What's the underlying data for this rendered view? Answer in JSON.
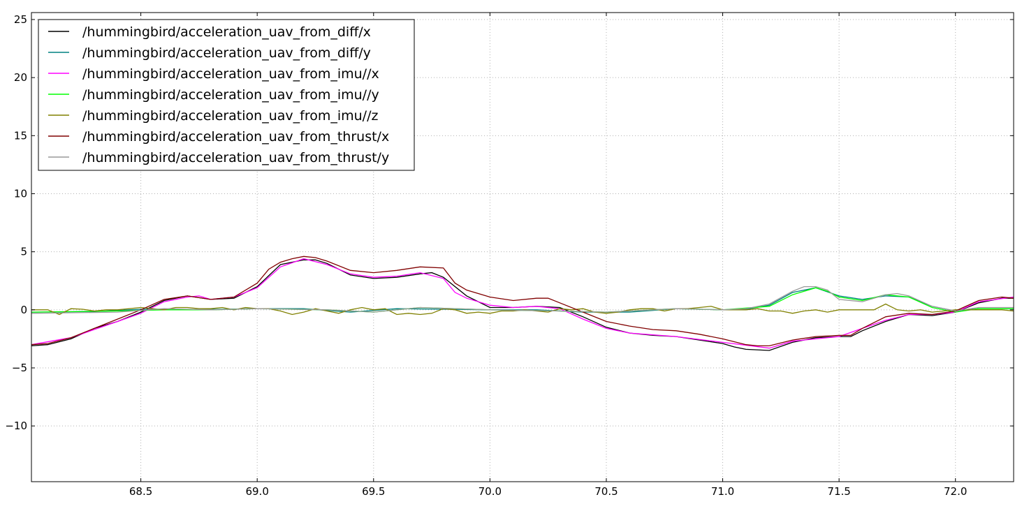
{
  "chart_data": {
    "type": "line",
    "title": "",
    "xlabel": "",
    "ylabel": "",
    "xlim": [
      68.03,
      72.25
    ],
    "ylim": [
      -14.8,
      25.6
    ],
    "xticks": [
      68.5,
      69.0,
      69.5,
      70.0,
      70.5,
      71.0,
      71.5,
      72.0
    ],
    "xtick_labels": [
      "68.5",
      "69.0",
      "69.5",
      "70.0",
      "70.5",
      "71.0",
      "71.5",
      "72.0"
    ],
    "yticks": [
      -10,
      -5,
      0,
      5,
      10,
      15,
      20,
      25
    ],
    "ytick_labels": [
      "−10",
      "−5",
      "0",
      "5",
      "10",
      "15",
      "20",
      "25"
    ],
    "grid": true,
    "legend_position": "top-left",
    "series": [
      {
        "name": "/hummingbird/acceleration_uav_from_diff/x",
        "color": "#000000",
        "x": [
          68.03,
          68.1,
          68.2,
          68.3,
          68.4,
          68.5,
          68.6,
          68.7,
          68.8,
          68.9,
          69.0,
          69.1,
          69.2,
          69.25,
          69.3,
          69.4,
          69.5,
          69.6,
          69.7,
          69.75,
          69.8,
          69.9,
          70.0,
          70.1,
          70.2,
          70.3,
          70.4,
          70.5,
          70.6,
          70.7,
          70.8,
          70.9,
          71.0,
          71.05,
          71.1,
          71.2,
          71.3,
          71.4,
          71.5,
          71.55,
          71.6,
          71.7,
          71.8,
          71.9,
          72.0,
          72.1,
          72.2,
          72.25
        ],
        "y": [
          -3.1,
          -3.0,
          -2.5,
          -1.6,
          -1.0,
          -0.2,
          0.8,
          1.2,
          0.9,
          1.0,
          2.0,
          3.9,
          4.3,
          4.3,
          4.0,
          3.0,
          2.7,
          2.8,
          3.1,
          3.2,
          2.8,
          1.2,
          0.2,
          0.2,
          0.3,
          0.2,
          -0.6,
          -1.5,
          -2.0,
          -2.2,
          -2.3,
          -2.6,
          -2.9,
          -3.2,
          -3.4,
          -3.5,
          -2.8,
          -2.4,
          -2.3,
          -2.3,
          -1.8,
          -1.0,
          -0.4,
          -0.5,
          -0.2,
          0.6,
          1.0,
          1.0
        ]
      },
      {
        "name": "/hummingbird/acceleration_uav_from_diff/y",
        "color": "#008080",
        "x": [
          68.03,
          68.3,
          68.5,
          68.7,
          69.0,
          69.2,
          69.4,
          69.6,
          69.8,
          70.0,
          70.2,
          70.4,
          70.6,
          70.8,
          71.0,
          71.1,
          71.2,
          71.3,
          71.4,
          71.5,
          71.6,
          71.7,
          71.8,
          71.9,
          72.0,
          72.1,
          72.25
        ],
        "y": [
          -0.2,
          -0.15,
          0.05,
          0.0,
          0.1,
          0.1,
          -0.2,
          0.1,
          0.05,
          0.0,
          0.0,
          -0.2,
          -0.2,
          0.1,
          0.0,
          0.05,
          0.4,
          1.5,
          1.9,
          1.2,
          0.9,
          1.2,
          1.1,
          0.3,
          -0.1,
          0.1,
          0.1
        ]
      },
      {
        "name": "/hummingbird/acceleration_uav_from_imu//x",
        "color": "#ff00ff",
        "x": [
          68.03,
          68.2,
          68.4,
          68.5,
          68.6,
          68.7,
          68.75,
          68.8,
          68.9,
          69.0,
          69.1,
          69.2,
          69.3,
          69.4,
          69.5,
          69.6,
          69.7,
          69.8,
          69.85,
          69.9,
          70.0,
          70.1,
          70.2,
          70.3,
          70.4,
          70.5,
          70.6,
          70.8,
          71.0,
          71.2,
          71.3,
          71.5,
          71.6,
          71.7,
          71.8,
          71.9,
          72.0,
          72.1,
          72.25
        ],
        "y": [
          -3.0,
          -2.4,
          -1.0,
          -0.3,
          0.7,
          1.1,
          1.2,
          0.9,
          1.1,
          1.9,
          3.7,
          4.4,
          3.9,
          3.1,
          2.8,
          2.9,
          3.2,
          2.7,
          1.5,
          1.0,
          0.4,
          0.2,
          0.3,
          0.1,
          -0.8,
          -1.6,
          -2.0,
          -2.3,
          -2.8,
          -3.3,
          -2.7,
          -2.3,
          -1.6,
          -0.9,
          -0.4,
          -0.4,
          -0.2,
          0.7,
          1.1
        ]
      },
      {
        "name": "/hummingbird/acceleration_uav_from_imu//y",
        "color": "#00ff00",
        "x": [
          68.03,
          68.4,
          68.6,
          68.8,
          69.0,
          69.3,
          69.5,
          69.7,
          70.0,
          70.3,
          70.5,
          70.8,
          71.0,
          71.2,
          71.3,
          71.4,
          71.45,
          71.5,
          71.6,
          71.7,
          71.8,
          71.9,
          72.0,
          72.1,
          72.25
        ],
        "y": [
          -0.2,
          -0.1,
          0.0,
          0.0,
          0.1,
          0.0,
          -0.2,
          0.2,
          0.0,
          -0.1,
          -0.2,
          0.1,
          0.0,
          0.3,
          1.3,
          1.9,
          1.6,
          1.1,
          0.8,
          1.3,
          1.1,
          0.2,
          -0.2,
          0.1,
          0.1
        ]
      },
      {
        "name": "/hummingbird/acceleration_uav_from_imu//z",
        "color": "#808000",
        "x": [
          68.03,
          68.1,
          68.15,
          68.2,
          68.25,
          68.3,
          68.35,
          68.4,
          68.5,
          68.55,
          68.6,
          68.65,
          68.7,
          68.75,
          68.8,
          68.85,
          68.9,
          68.95,
          69.0,
          69.05,
          69.1,
          69.15,
          69.2,
          69.25,
          69.3,
          69.35,
          69.4,
          69.45,
          69.5,
          69.55,
          69.6,
          69.65,
          69.7,
          69.75,
          69.8,
          69.85,
          69.9,
          69.95,
          70.0,
          70.05,
          70.1,
          70.15,
          70.2,
          70.25,
          70.3,
          70.35,
          70.4,
          70.45,
          70.5,
          70.55,
          70.6,
          70.65,
          70.7,
          70.75,
          70.8,
          70.85,
          70.9,
          70.95,
          71.0,
          71.05,
          71.1,
          71.15,
          71.2,
          71.25,
          71.3,
          71.35,
          71.4,
          71.45,
          71.5,
          71.55,
          71.6,
          71.65,
          71.7,
          71.75,
          71.8,
          71.85,
          71.9,
          71.95,
          72.0,
          72.05,
          72.1,
          72.15,
          72.2,
          72.25
        ],
        "y": [
          0.0,
          0.0,
          -0.4,
          0.1,
          0.05,
          -0.1,
          0.0,
          0.0,
          0.2,
          0.1,
          0.0,
          0.2,
          0.2,
          0.1,
          0.1,
          0.2,
          0.0,
          0.2,
          0.1,
          0.1,
          -0.1,
          -0.4,
          -0.2,
          0.1,
          -0.1,
          -0.3,
          0.0,
          0.2,
          0.0,
          0.1,
          -0.4,
          -0.3,
          -0.4,
          -0.3,
          0.1,
          0.0,
          -0.3,
          -0.2,
          -0.3,
          -0.1,
          -0.1,
          0.0,
          -0.1,
          -0.2,
          0.1,
          0.0,
          0.1,
          -0.2,
          -0.3,
          -0.2,
          0.0,
          0.1,
          0.1,
          -0.1,
          0.1,
          0.1,
          0.2,
          0.3,
          0.0,
          0.0,
          0.0,
          0.1,
          -0.1,
          -0.1,
          -0.3,
          -0.1,
          0.0,
          -0.2,
          0.0,
          0.0,
          0.0,
          0.0,
          0.5,
          0.0,
          -0.1,
          0.0,
          -0.2,
          -0.1,
          0.0,
          0.0,
          0.0,
          0.0,
          0.0,
          -0.1
        ]
      },
      {
        "name": "/hummingbird/acceleration_uav_from_thrust/x",
        "color": "#800000",
        "x": [
          68.03,
          68.1,
          68.2,
          68.3,
          68.4,
          68.5,
          68.6,
          68.7,
          68.8,
          68.9,
          69.0,
          69.05,
          69.1,
          69.15,
          69.2,
          69.25,
          69.3,
          69.4,
          69.5,
          69.6,
          69.7,
          69.8,
          69.85,
          69.9,
          70.0,
          70.1,
          70.2,
          70.25,
          70.3,
          70.4,
          70.5,
          70.6,
          70.7,
          70.8,
          70.9,
          71.0,
          71.1,
          71.15,
          71.2,
          71.3,
          71.4,
          71.5,
          71.55,
          71.6,
          71.7,
          71.8,
          71.9,
          72.0,
          72.1,
          72.2,
          72.25
        ],
        "y": [
          -3.0,
          -2.9,
          -2.4,
          -1.6,
          -0.8,
          0.0,
          0.9,
          1.2,
          0.9,
          1.1,
          2.3,
          3.5,
          4.1,
          4.4,
          4.6,
          4.5,
          4.2,
          3.4,
          3.2,
          3.4,
          3.7,
          3.6,
          2.3,
          1.7,
          1.1,
          0.8,
          1.0,
          1.0,
          0.6,
          -0.2,
          -1.0,
          -1.4,
          -1.7,
          -1.8,
          -2.1,
          -2.5,
          -3.0,
          -3.1,
          -3.1,
          -2.6,
          -2.3,
          -2.2,
          -2.2,
          -1.6,
          -0.6,
          -0.3,
          -0.4,
          -0.1,
          0.8,
          1.1,
          1.0
        ]
      },
      {
        "name": "/hummingbird/acceleration_uav_from_thrust/y",
        "color": "#999999",
        "x": [
          68.03,
          68.4,
          68.6,
          68.8,
          69.0,
          69.3,
          69.5,
          69.7,
          70.0,
          70.3,
          70.5,
          70.8,
          71.0,
          71.1,
          71.2,
          71.3,
          71.35,
          71.4,
          71.45,
          71.5,
          71.6,
          71.7,
          71.75,
          71.8,
          71.9,
          72.0,
          72.1,
          72.25
        ],
        "y": [
          -0.3,
          -0.2,
          0.1,
          0.0,
          0.1,
          0.0,
          -0.2,
          0.2,
          0.0,
          -0.1,
          -0.2,
          0.1,
          0.0,
          0.1,
          0.5,
          1.6,
          2.0,
          2.0,
          1.7,
          0.9,
          0.7,
          1.3,
          1.4,
          1.2,
          0.3,
          -0.1,
          0.2,
          0.2
        ]
      }
    ]
  }
}
